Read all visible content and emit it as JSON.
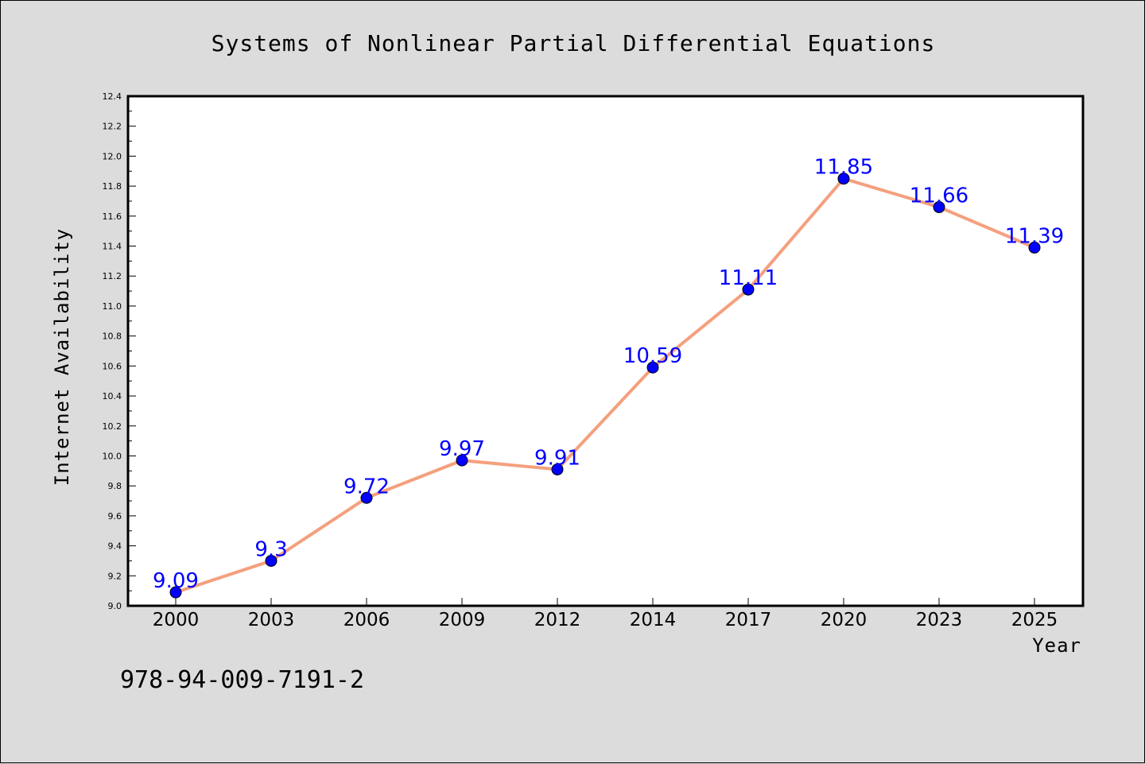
{
  "chart_data": {
    "type": "line",
    "title": "Systems of Nonlinear Partial Differential Equations",
    "xlabel": "Year",
    "ylabel": "Internet Availability",
    "categories": [
      "2000",
      "2003",
      "2006",
      "2009",
      "2012",
      "2014",
      "2017",
      "2020",
      "2023",
      "2025"
    ],
    "series": [
      {
        "values": [
          9.09,
          9.3,
          9.72,
          9.97,
          9.91,
          10.59,
          11.11,
          11.85,
          11.66,
          11.39
        ],
        "data_labels": [
          "9.09",
          "9.3",
          "9.72",
          "9.97",
          "9.91",
          "10.59",
          "11.11",
          "11.85",
          "11.66",
          "11.39"
        ],
        "line_color": "#f4a07e",
        "marker_color": "#0000ff"
      }
    ],
    "ylim": [
      9.0,
      12.4
    ],
    "yticks": [
      "9.0",
      "9.2",
      "9.4",
      "9.6",
      "9.8",
      "10.0",
      "10.2",
      "10.4",
      "10.6",
      "10.8",
      "11.0",
      "11.2",
      "11.4",
      "11.6",
      "11.8",
      "12.0",
      "12.2",
      "12.4"
    ],
    "grid": false,
    "legend": "none"
  },
  "footer": {
    "isbn": "978-94-009-7191-2"
  },
  "colors": {
    "background": "#dcdcdc",
    "plot_background": "#ffffff",
    "line": "#f4a07e",
    "marker": "#0000ff",
    "data_label": "#0000ff"
  }
}
